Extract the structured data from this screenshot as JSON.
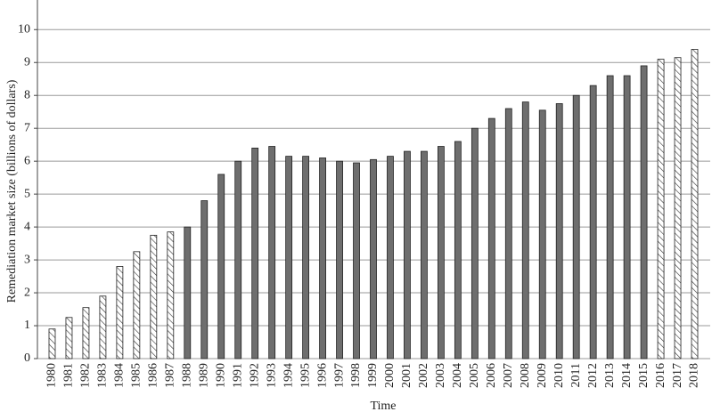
{
  "chart_data": {
    "type": "bar",
    "x_label": "Time",
    "y_label": "Remediation market size (billions of dollars)",
    "categories": [
      "1980",
      "1981",
      "1982",
      "1983",
      "1984",
      "1985",
      "1986",
      "1987",
      "1988",
      "1989",
      "1990",
      "1991",
      "1992",
      "1993",
      "1994",
      "1995",
      "1996",
      "1997",
      "1998",
      "1999",
      "2000",
      "2001",
      "2002",
      "2003",
      "2004",
      "2005",
      "2006",
      "2007",
      "2008",
      "2009",
      "2010",
      "2011",
      "2012",
      "2013",
      "2014",
      "2015",
      "2016",
      "2017",
      "2018"
    ],
    "values": [
      0.9,
      1.25,
      1.55,
      1.9,
      2.8,
      3.25,
      3.75,
      3.85,
      4.0,
      4.8,
      5.6,
      6.0,
      6.4,
      6.45,
      6.15,
      6.15,
      6.1,
      6.0,
      5.95,
      6.05,
      6.15,
      6.3,
      6.3,
      6.45,
      6.6,
      7.0,
      7.3,
      7.6,
      7.8,
      7.55,
      7.75,
      8.0,
      8.3,
      8.6,
      8.6,
      8.9,
      9.1,
      9.15,
      9.4
    ],
    "bar_styles": [
      "hatched",
      "hatched",
      "hatched",
      "hatched",
      "hatched",
      "hatched",
      "hatched",
      "hatched",
      "solid",
      "solid",
      "solid",
      "solid",
      "solid",
      "solid",
      "solid",
      "solid",
      "solid",
      "solid",
      "solid",
      "solid",
      "solid",
      "solid",
      "solid",
      "solid",
      "solid",
      "solid",
      "solid",
      "solid",
      "solid",
      "solid",
      "solid",
      "solid",
      "solid",
      "solid",
      "solid",
      "solid",
      "hatched",
      "hatched",
      "hatched"
    ],
    "color": "#6e6e6e",
    "ylim": [
      0,
      10.9
    ],
    "yticks": [
      0,
      1,
      2,
      3,
      4,
      5,
      6,
      7,
      8,
      9,
      10
    ],
    "grid": true
  }
}
